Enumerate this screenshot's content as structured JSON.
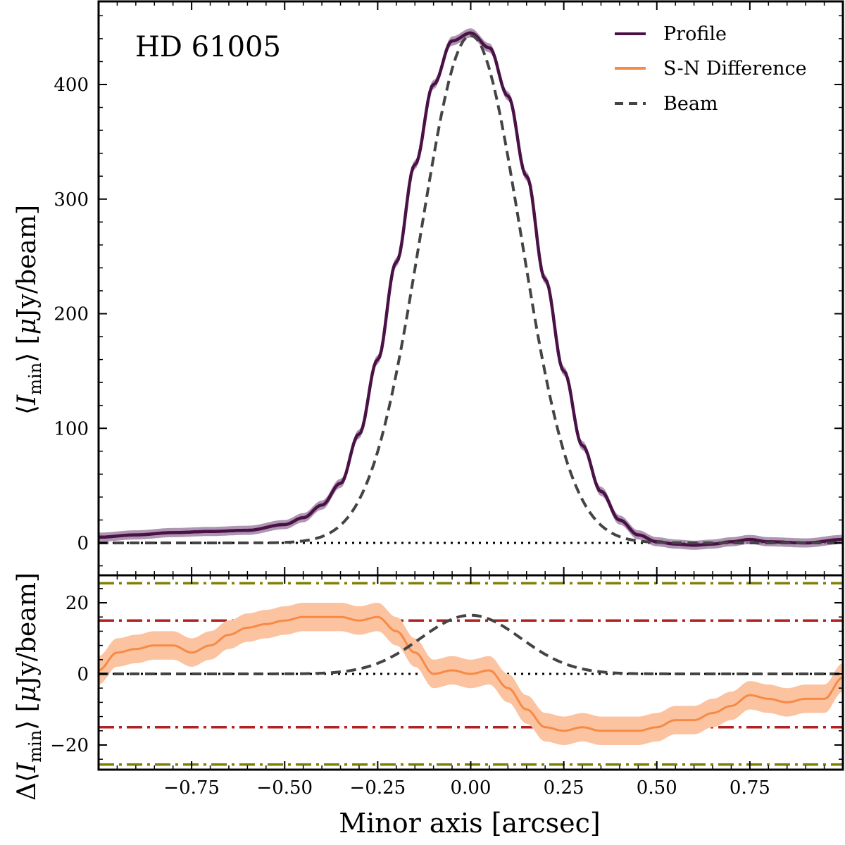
{
  "chart_data": [
    {
      "type": "line",
      "title": "HD 61005",
      "xlabel": "",
      "ylabel": "⟨I_min⟩ [μJy/beam]",
      "ylabel_parts": {
        "prefix": "⟨",
        "var": "I",
        "sub": "min",
        "suffix": "⟩ [",
        "mu": "μ",
        "unit": "Jy/beam]"
      },
      "xlim": [
        -1.0,
        1.0
      ],
      "ylim": [
        -30,
        460
      ],
      "yticks": [
        0,
        100,
        200,
        300,
        400
      ],
      "ytick_labels": [
        "0",
        "100",
        "200",
        "300",
        "400"
      ],
      "legend": [
        "Profile",
        "S-N Difference",
        "Beam"
      ],
      "legend_position": "top-right",
      "colors": {
        "profile": "#4a1146",
        "profile_band": "#9a7b9e",
        "sn": "#f78a45",
        "sn_band": "#fbc3a0",
        "beam": "#444444"
      },
      "series": [
        {
          "name": "Profile",
          "style": "solid",
          "x": [
            -1.0,
            -0.9,
            -0.8,
            -0.7,
            -0.6,
            -0.5,
            -0.45,
            -0.4,
            -0.35,
            -0.3,
            -0.25,
            -0.2,
            -0.15,
            -0.1,
            -0.05,
            0.0,
            0.05,
            0.1,
            0.15,
            0.2,
            0.25,
            0.3,
            0.35,
            0.4,
            0.45,
            0.5,
            0.55,
            0.6,
            0.65,
            0.7,
            0.75,
            0.8,
            0.9,
            1.0
          ],
          "y": [
            5,
            7,
            9,
            10,
            11,
            16,
            22,
            33,
            52,
            95,
            160,
            245,
            330,
            400,
            438,
            445,
            432,
            390,
            320,
            230,
            150,
            85,
            45,
            20,
            7,
            1,
            -1,
            -2,
            -1,
            1,
            3,
            1,
            0,
            3
          ],
          "band_halfwidth": 4
        },
        {
          "name": "Beam",
          "style": "dashed",
          "function": "gaussian",
          "amplitude": 443,
          "sigma": 0.135
        }
      ],
      "hlines": [
        {
          "y": 0,
          "style": "dotted",
          "color": "#000000"
        }
      ]
    },
    {
      "type": "line",
      "xlabel": "Minor axis [arcsec]",
      "ylabel": "Δ⟨I_min⟩ [μJy/beam]",
      "ylabel_parts": {
        "prefix": "Δ⟨",
        "var": "I",
        "sub": "min",
        "suffix": "⟩ [",
        "mu": "μ",
        "unit": "Jy/beam]"
      },
      "xlim": [
        -1.0,
        1.0
      ],
      "ylim": [
        -27,
        27
      ],
      "yticks": [
        -20,
        0,
        20
      ],
      "ytick_labels": [
        "−20",
        "0",
        "20"
      ],
      "xticks": [
        -0.75,
        -0.5,
        -0.25,
        0.0,
        0.25,
        0.5,
        0.75
      ],
      "xtick_labels": [
        "−0.75",
        "−0.50",
        "−0.25",
        "0.00",
        "0.25",
        "0.50",
        "0.75"
      ],
      "series": [
        {
          "name": "S-N Difference",
          "style": "solid",
          "x": [
            -1.0,
            -0.95,
            -0.9,
            -0.85,
            -0.8,
            -0.75,
            -0.7,
            -0.65,
            -0.6,
            -0.55,
            -0.5,
            -0.45,
            -0.4,
            -0.35,
            -0.3,
            -0.25,
            -0.2,
            -0.15,
            -0.1,
            -0.05,
            0.0,
            0.05,
            0.1,
            0.15,
            0.2,
            0.25,
            0.3,
            0.35,
            0.4,
            0.45,
            0.5,
            0.55,
            0.6,
            0.65,
            0.7,
            0.75,
            0.8,
            0.85,
            0.9,
            0.95,
            1.0
          ],
          "y": [
            1,
            6,
            7,
            8,
            8,
            6,
            8,
            11,
            13,
            14,
            15,
            16,
            16,
            16,
            15,
            16,
            12,
            6,
            0,
            1,
            0,
            1,
            -4,
            -10,
            -15,
            -16,
            -15,
            -16,
            -16,
            -16,
            -15,
            -13,
            -13,
            -11,
            -9,
            -6,
            -7,
            -8,
            -7,
            -7,
            -1
          ],
          "band_halfwidth": 4
        },
        {
          "name": "Beam",
          "style": "dashed",
          "function": "gaussian",
          "amplitude": 16.5,
          "sigma": 0.135
        }
      ],
      "hlines": [
        {
          "y": 0,
          "style": "dotted",
          "color": "#000000"
        },
        {
          "y": 15,
          "style": "dashdot",
          "color": "#b22222"
        },
        {
          "y": -15,
          "style": "dashdot",
          "color": "#b22222"
        },
        {
          "y": 25.5,
          "style": "dashdot",
          "color": "#808000"
        },
        {
          "y": -25.5,
          "style": "dashdot",
          "color": "#808000"
        }
      ]
    }
  ]
}
